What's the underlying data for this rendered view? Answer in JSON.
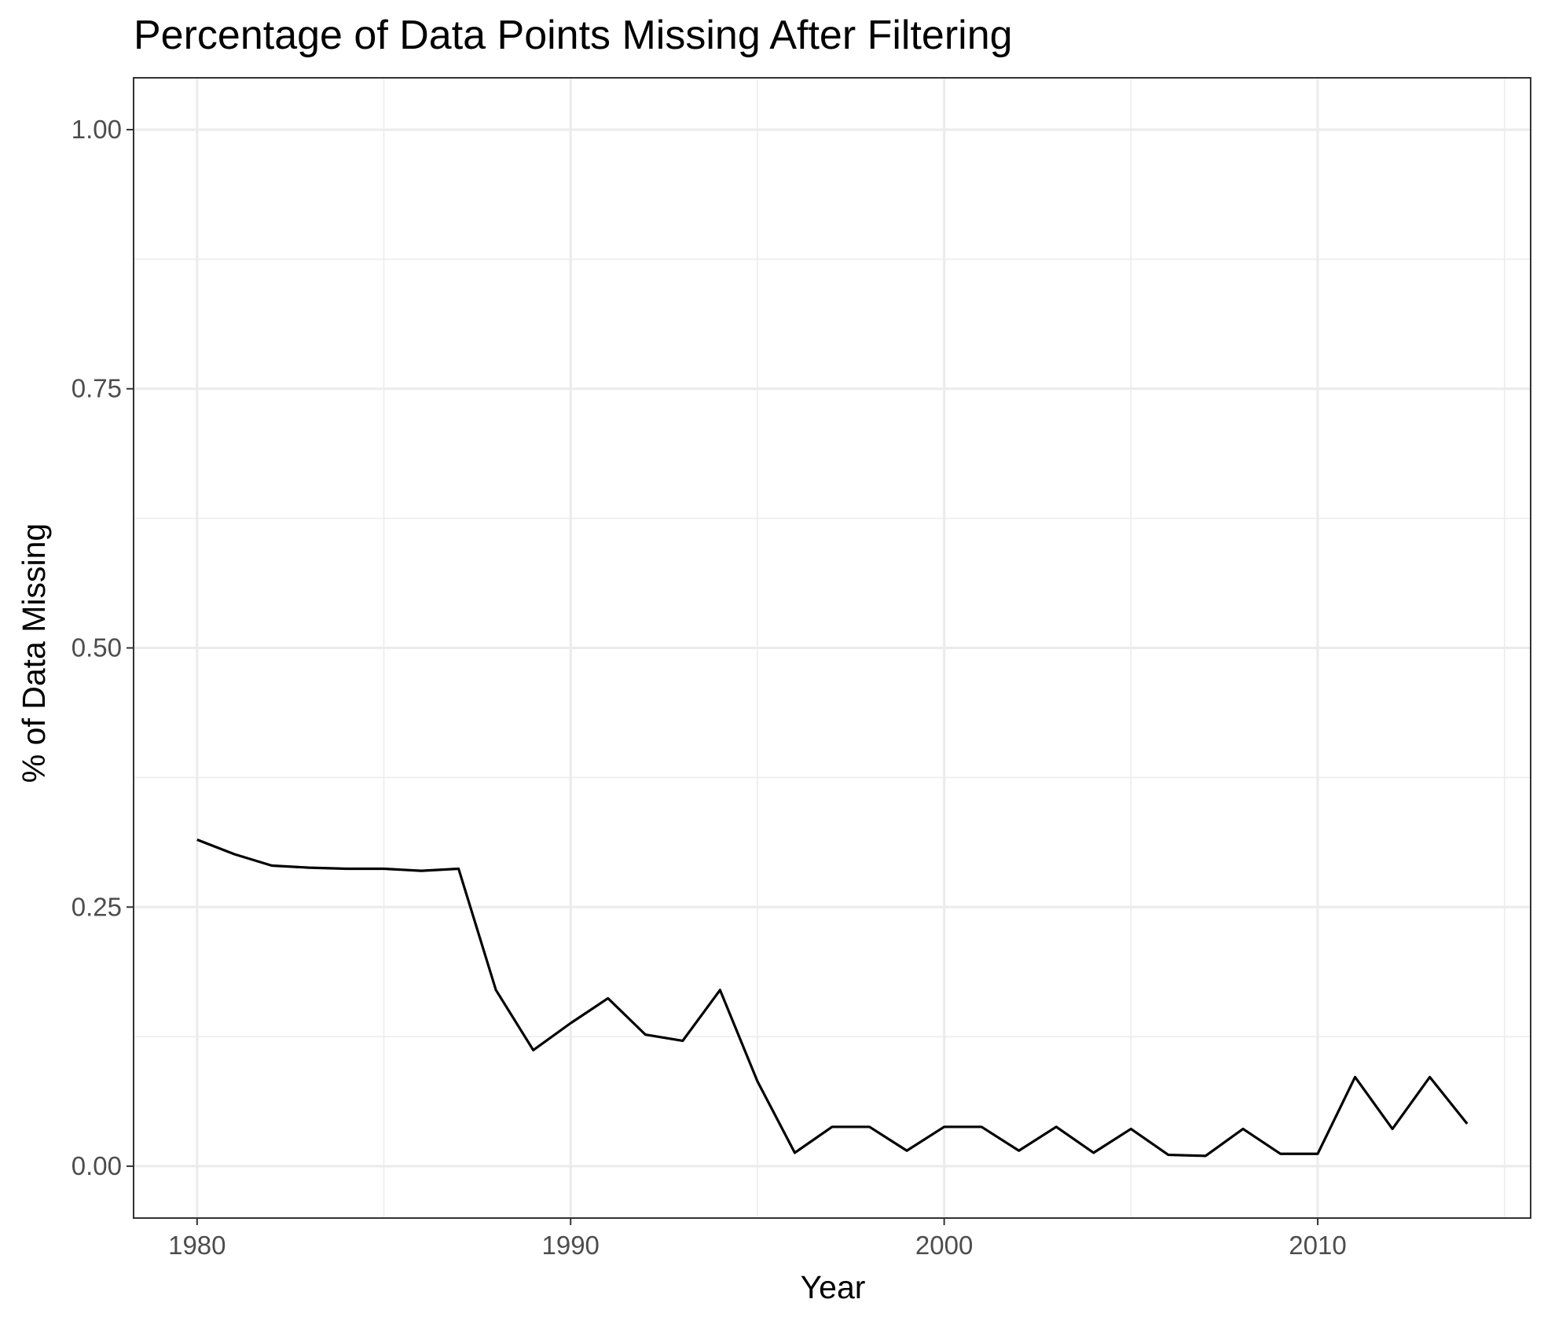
{
  "chart_data": {
    "type": "line",
    "title": "Percentage of Data Points Missing After Filtering",
    "xlabel": "Year",
    "ylabel": "% of Data Missing",
    "xlim": [
      1978.3,
      2015.7
    ],
    "ylim": [
      -0.05,
      1.05
    ],
    "x_major_ticks": [
      1980,
      1990,
      2000,
      2010
    ],
    "x_minor_ticks": [
      1985,
      1995,
      2005,
      2015
    ],
    "x_tick_labels": [
      "1980",
      "1990",
      "2000",
      "2010"
    ],
    "y_major_ticks": [
      0.0,
      0.25,
      0.5,
      0.75,
      1.0
    ],
    "y_minor_ticks": [
      0.125,
      0.375,
      0.625,
      0.875
    ],
    "y_tick_labels": [
      "0.00",
      "0.25",
      "0.50",
      "0.75",
      "1.00"
    ],
    "grid": true,
    "legend": "none",
    "colors": {
      "line": "#000000",
      "grid": "#ebebeb",
      "panel_border": "#333333",
      "tick_text": "#4d4d4d"
    },
    "x": [
      1980,
      1981,
      1982,
      1983,
      1984,
      1985,
      1986,
      1987,
      1988,
      1989,
      1990,
      1991,
      1992,
      1993,
      1994,
      1995,
      1996,
      1997,
      1998,
      1999,
      2000,
      2001,
      2002,
      2003,
      2004,
      2005,
      2006,
      2007,
      2008,
      2009,
      2010,
      2011,
      2012,
      2013,
      2014
    ],
    "values": [
      0.315,
      0.301,
      0.29,
      0.288,
      0.287,
      0.287,
      0.285,
      0.287,
      0.17,
      0.112,
      0.138,
      0.162,
      0.127,
      0.121,
      0.17,
      0.082,
      0.013,
      0.038,
      0.038,
      0.015,
      0.038,
      0.038,
      0.015,
      0.038,
      0.013,
      0.036,
      0.011,
      0.01,
      0.036,
      0.012,
      0.012,
      0.086,
      0.036,
      0.086,
      0.041
    ]
  }
}
